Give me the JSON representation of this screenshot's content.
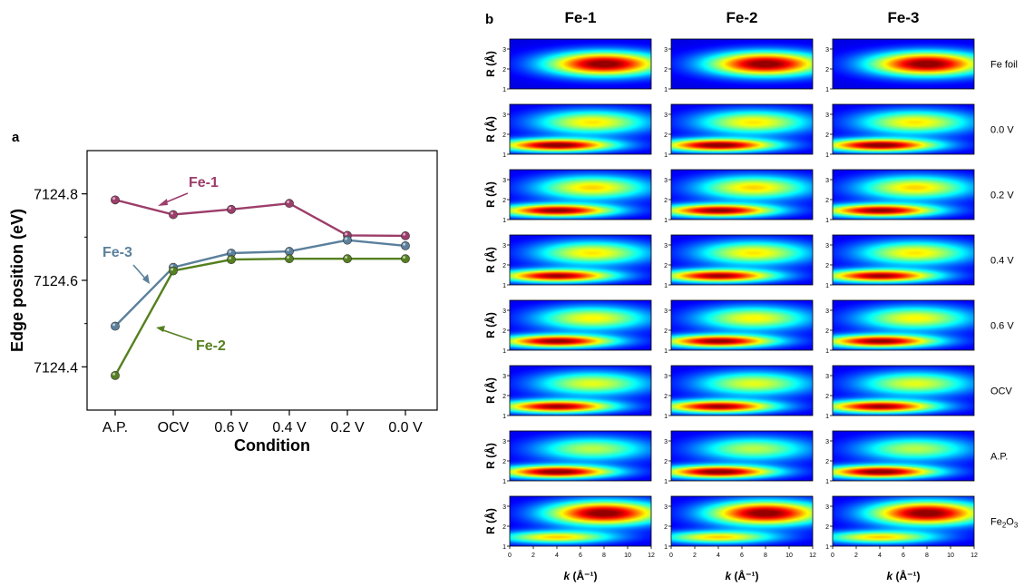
{
  "panel_labels": {
    "a": "a",
    "b": "b"
  },
  "colors": {
    "fe1": "#9c3d6a",
    "fe2": "#55801f",
    "fe3": "#5b809c",
    "axis": "#000000"
  },
  "chart_data": [
    {
      "type": "line",
      "panel": "a",
      "title": "",
      "xlabel": "Condition",
      "ylabel": "Edge position (eV)",
      "categories": [
        "A.P.",
        "OCV",
        "0.6 V",
        "0.4 V",
        "0.2 V",
        "0.0 V"
      ],
      "ylim": [
        7124.3,
        7124.9
      ],
      "yticks": [
        7124.4,
        7124.6,
        7124.8
      ],
      "ytick_labels": [
        "7124.4",
        "7124.6",
        "7124.8"
      ],
      "grid": false,
      "series": [
        {
          "name": "Fe-1",
          "color": "#9c3d6a",
          "values": [
            7124.786,
            7124.752,
            7124.764,
            7124.778,
            7124.704,
            7124.703
          ]
        },
        {
          "name": "Fe-3",
          "color": "#5b809c",
          "values": [
            7124.494,
            7124.63,
            7124.663,
            7124.667,
            7124.693,
            7124.68
          ]
        },
        {
          "name": "Fe-2",
          "color": "#55801f",
          "values": [
            7124.38,
            7124.622,
            7124.648,
            7124.65,
            7124.65,
            7124.65
          ]
        }
      ]
    },
    {
      "type": "heatmap",
      "panel": "b",
      "columns": [
        "Fe-1",
        "Fe-2",
        "Fe-3"
      ],
      "rows": [
        "Fe foil",
        "0.0 V",
        "0.2 V",
        "0.4 V",
        "0.6 V",
        "OCV",
        "A.P.",
        "Fe2O3"
      ],
      "xlabel_italic": "k",
      "xlabel_rest": " (Å⁻¹)",
      "ylabel": "R (Å)",
      "xlim": [
        0,
        12
      ],
      "ylim": [
        1,
        3.5
      ],
      "xticks": [
        0,
        2,
        4,
        6,
        8,
        10,
        12
      ],
      "yticks": [
        1,
        2,
        3
      ],
      "peaks": {
        "Fe foil": [
          {
            "k": 8.0,
            "r": 2.25,
            "amp": 1.0
          }
        ],
        "0.0 V": [
          {
            "k": 4.0,
            "r": 1.45,
            "amp": 1.0
          },
          {
            "k": 7.0,
            "r": 2.6,
            "amp": 0.6
          }
        ],
        "0.2 V": [
          {
            "k": 4.0,
            "r": 1.45,
            "amp": 0.97
          },
          {
            "k": 7.0,
            "r": 2.6,
            "amp": 0.62
          }
        ],
        "0.4 V": [
          {
            "k": 4.0,
            "r": 1.45,
            "amp": 0.95
          },
          {
            "k": 7.0,
            "r": 2.6,
            "amp": 0.6
          }
        ],
        "0.6 V": [
          {
            "k": 4.0,
            "r": 1.45,
            "amp": 0.97
          },
          {
            "k": 7.0,
            "r": 2.6,
            "amp": 0.58
          }
        ],
        "OCV": [
          {
            "k": 4.0,
            "r": 1.45,
            "amp": 0.95
          },
          {
            "k": 7.0,
            "r": 2.6,
            "amp": 0.55
          }
        ],
        "A.P.": [
          {
            "k": 4.0,
            "r": 1.45,
            "amp": 1.0
          },
          {
            "k": 7.0,
            "r": 2.6,
            "amp": 0.5
          }
        ],
        "Fe2O3": [
          {
            "k": 4.0,
            "r": 1.45,
            "amp": 0.62
          },
          {
            "k": 8.0,
            "r": 2.65,
            "amp": 1.0
          }
        ]
      }
    }
  ]
}
